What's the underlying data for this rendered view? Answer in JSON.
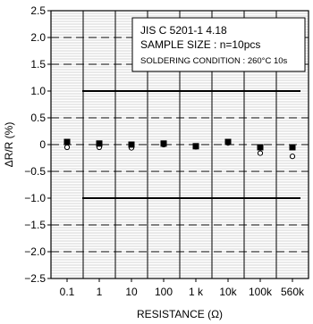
{
  "chart_data": {
    "type": "scatter",
    "title": "",
    "xlabel": "RESISTANCE (Ω)",
    "ylabel": "ΔR/R (%)",
    "categories": [
      "0.1",
      "1",
      "10",
      "100",
      "1 k",
      "10k",
      "100k",
      "560k"
    ],
    "ylim": [
      -2.5,
      2.5
    ],
    "y_ticks": [
      "2.5",
      "2.0",
      "1.5",
      "1.0",
      "0.5",
      "0",
      "−0.5",
      "−1.0",
      "−1.5",
      "−2.0",
      "−2.5"
    ],
    "y_tick_values": [
      2.5,
      2.0,
      1.5,
      1.0,
      0.5,
      0,
      -0.5,
      -1.0,
      -1.5,
      -2.0,
      -2.5
    ],
    "limit_lines": [
      1.0,
      -1.0
    ],
    "dashed_gridlines": [
      2.0,
      1.5,
      0.5,
      -0.5,
      -1.5,
      -2.0
    ],
    "series": [
      {
        "values": [
          0.05,
          0.02,
          0.0,
          0.02,
          -0.03,
          0.05,
          -0.05,
          -0.05
        ]
      },
      {
        "values": [
          -0.05,
          -0.05,
          -0.06,
          0.0,
          -0.04,
          0.03,
          -0.16,
          -0.22
        ]
      }
    ],
    "annotation": {
      "lines": [
        "JIS C 5201-1 4.18",
        "SAMPLE SIZE : n=10pcs",
        "SOLDERING CONDITION : 260°C 10s"
      ]
    },
    "grid": true
  }
}
